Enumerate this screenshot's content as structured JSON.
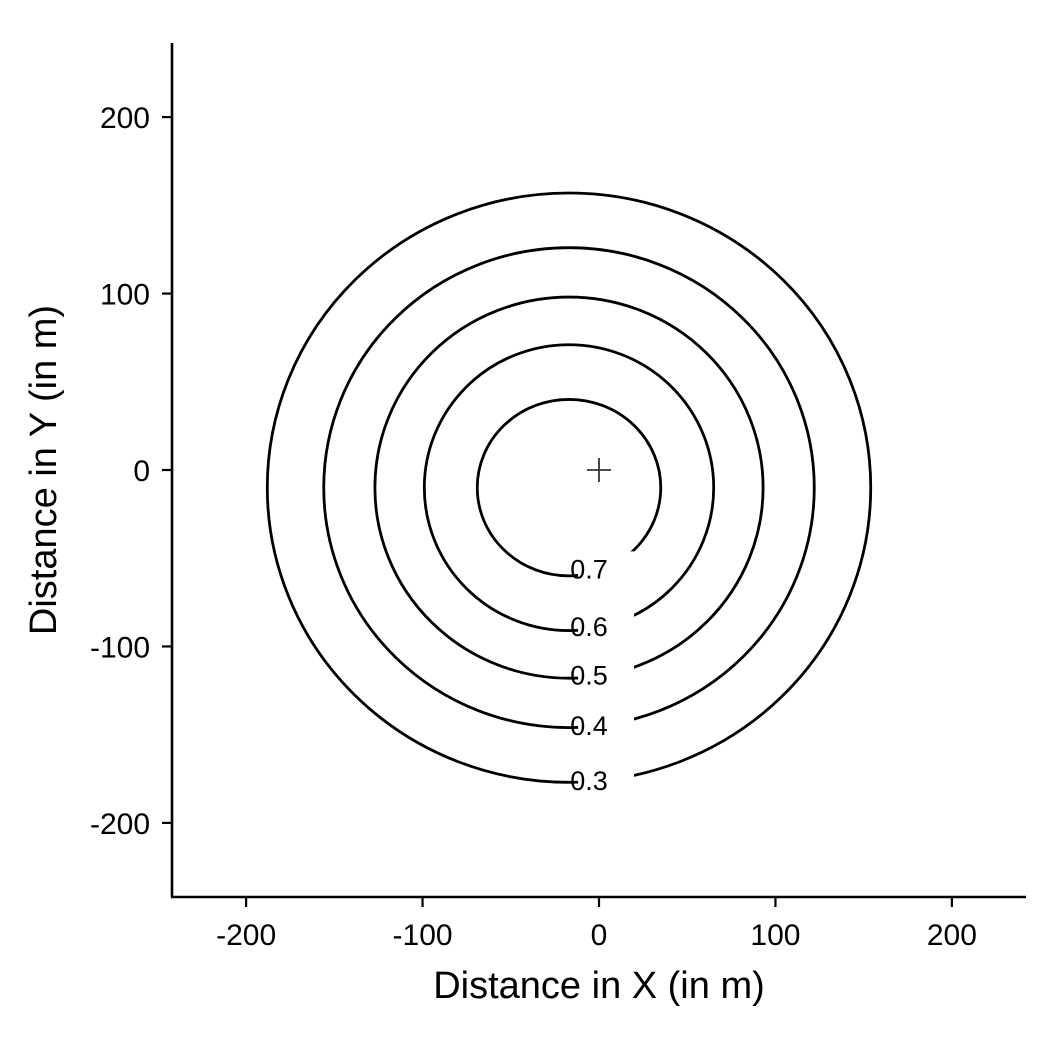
{
  "chart_data": {
    "type": "contour",
    "title": "",
    "xlabel": "Distance in X (in m)",
    "ylabel": "Distance in Y (in m)",
    "xlim": [
      -242,
      242
    ],
    "ylim": [
      -242,
      242
    ],
    "xticks": [
      {
        "value": -200,
        "label": "-200"
      },
      {
        "value": -100,
        "label": "-100"
      },
      {
        "value": 0,
        "label": "0"
      },
      {
        "value": 100,
        "label": "100"
      },
      {
        "value": 200,
        "label": "200"
      }
    ],
    "yticks": [
      {
        "value": -200,
        "label": "-200"
      },
      {
        "value": -100,
        "label": "-100"
      },
      {
        "value": 0,
        "label": "0"
      },
      {
        "value": 100,
        "label": "100"
      },
      {
        "value": 200,
        "label": "200"
      }
    ],
    "grid": false,
    "center_marker": {
      "x": 0,
      "y": 0,
      "shape": "plus"
    },
    "contours": [
      {
        "level": 0.3,
        "label": "0.3",
        "center_x": -17,
        "center_y": -10,
        "radius_x": 171,
        "radius_y": 167
      },
      {
        "level": 0.4,
        "label": "0.4",
        "center_x": -17,
        "center_y": -10,
        "radius_x": 139,
        "radius_y": 136
      },
      {
        "level": 0.5,
        "label": "0.5",
        "center_x": -17,
        "center_y": -10,
        "radius_x": 110,
        "radius_y": 108
      },
      {
        "level": 0.6,
        "label": "0.6",
        "center_x": -17,
        "center_y": -10,
        "radius_x": 82,
        "radius_y": 81
      },
      {
        "level": 0.7,
        "label": "0.7",
        "center_x": -17,
        "center_y": -10,
        "radius_x": 52,
        "radius_y": 50
      }
    ]
  }
}
